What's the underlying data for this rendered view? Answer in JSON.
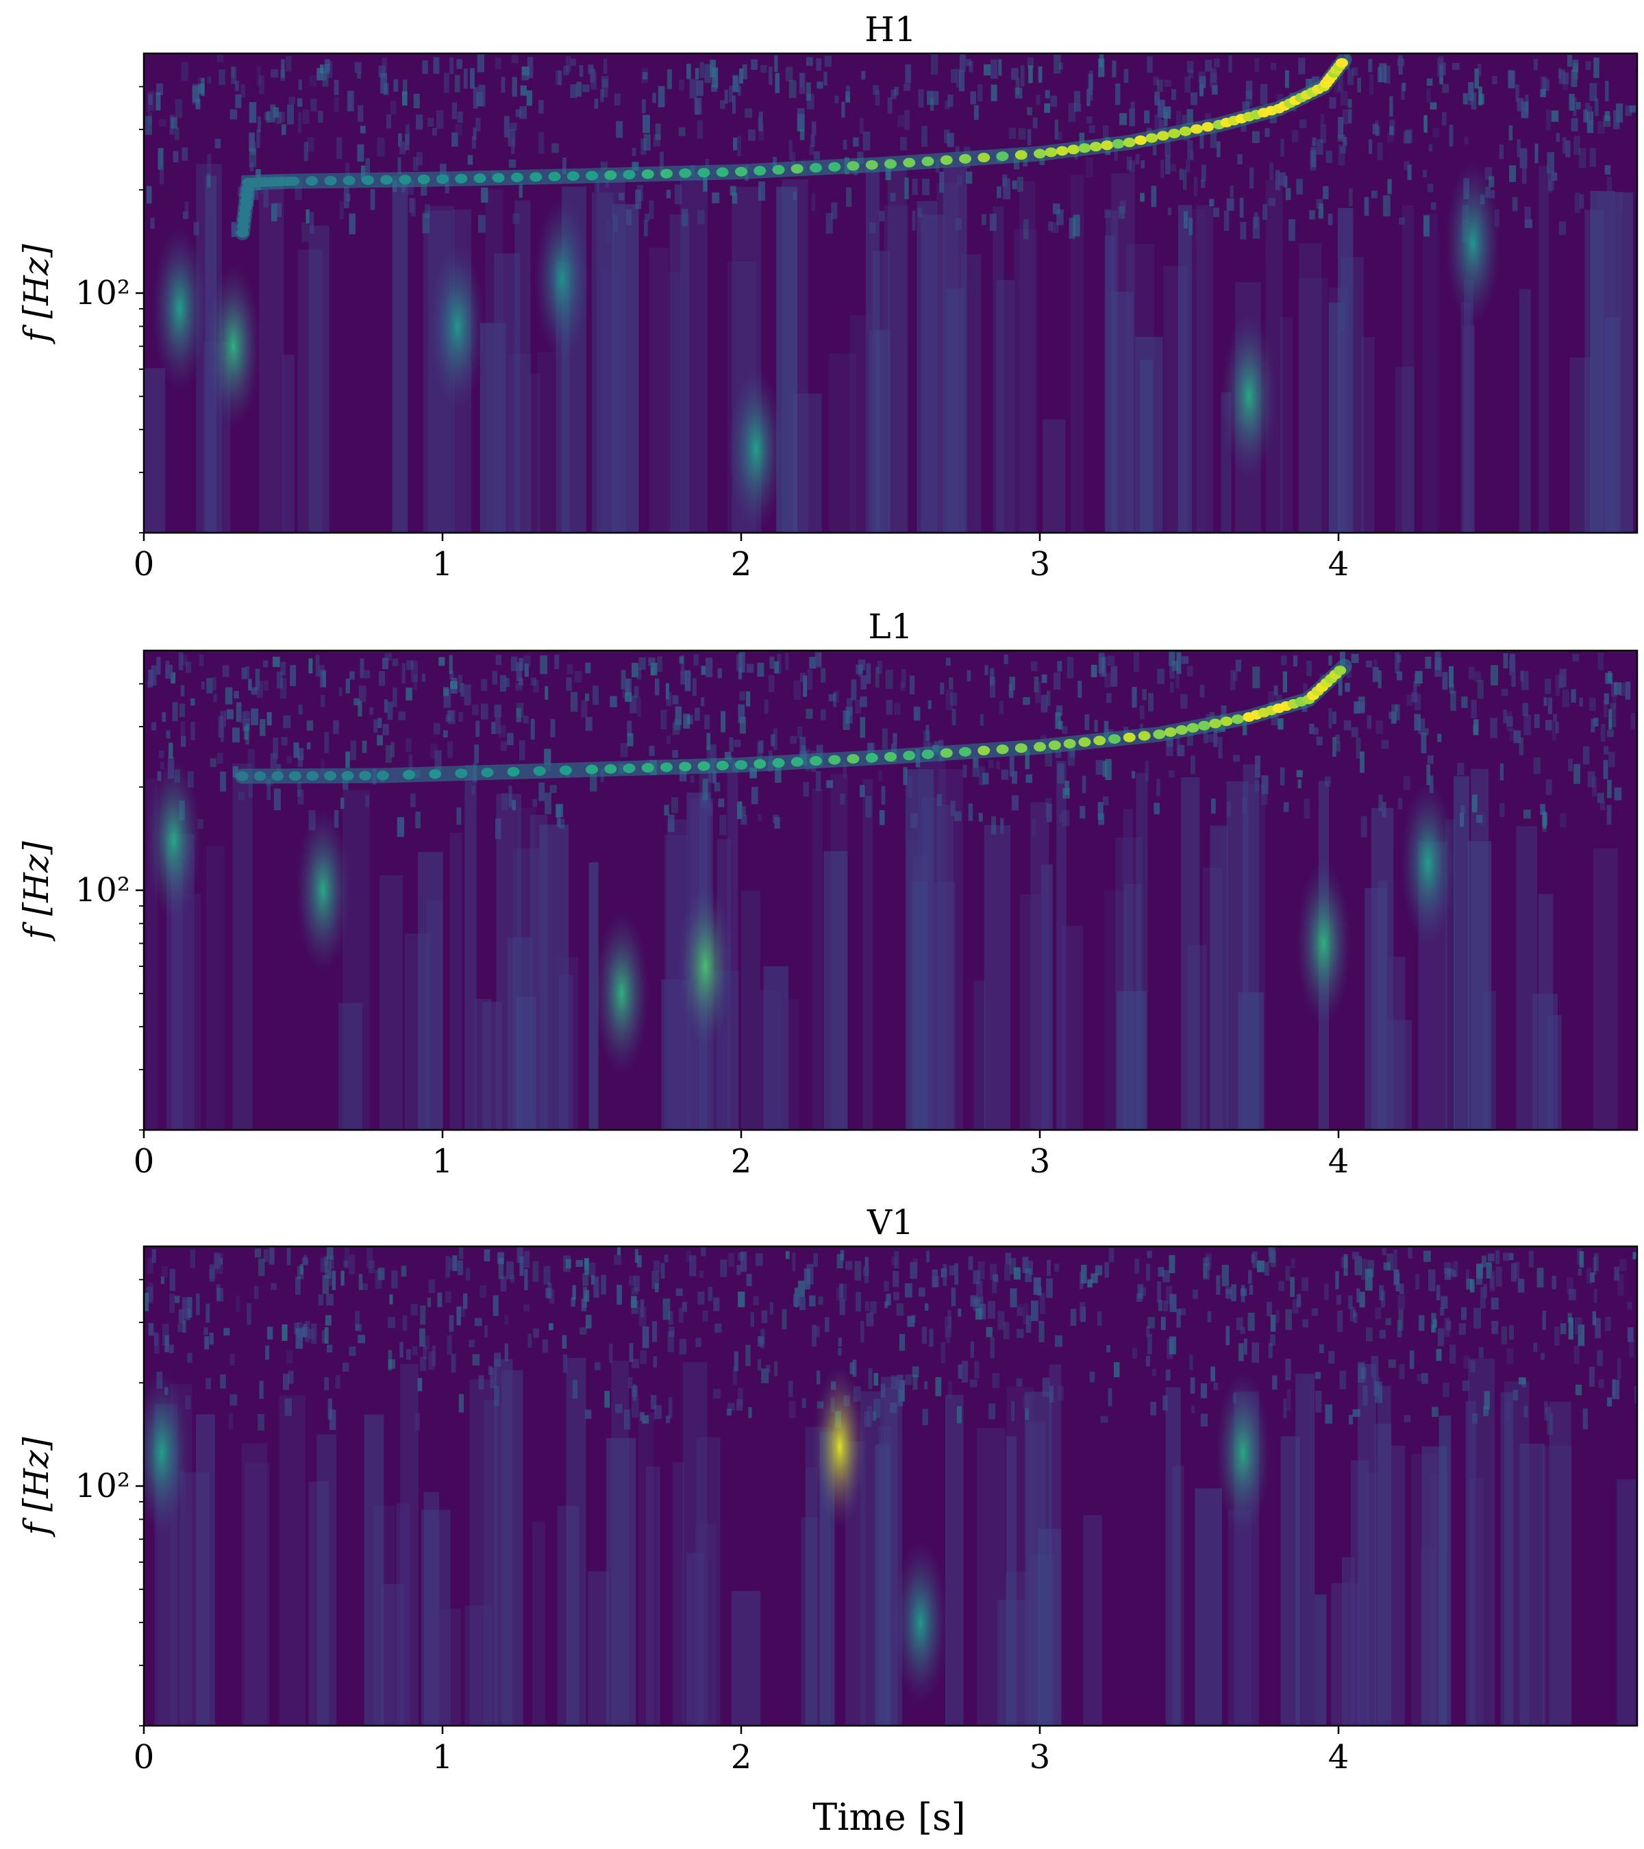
{
  "figure": {
    "xlabel": "Time [s]",
    "ylabel": "f [Hz]"
  },
  "chart_data": [
    {
      "type": "heatmap",
      "title": "H1",
      "xlabel": "",
      "ylabel": "f [Hz]",
      "xlim": [
        0,
        5
      ],
      "ylim": [
        20,
        500
      ],
      "yscale": "log",
      "xticks": [
        0,
        1,
        2,
        3,
        4
      ],
      "xtick_labels": [
        "0",
        "1",
        "2",
        "3",
        "4"
      ],
      "yticks": [
        100
      ],
      "ytick_labels": [
        "10²"
      ],
      "colormap": "viridis",
      "grid": false,
      "features": {
        "chirp_track": {
          "description_free": true,
          "points": [
            [
              0.33,
              150
            ],
            [
              0.35,
              210
            ],
            [
              0.5,
              212
            ],
            [
              1.0,
              215
            ],
            [
              1.5,
              220
            ],
            [
              2.0,
              226
            ],
            [
              2.5,
              238
            ],
            [
              3.0,
              255
            ],
            [
              3.3,
              275
            ],
            [
              3.6,
              310
            ],
            [
              3.8,
              345
            ],
            [
              3.95,
              400
            ],
            [
              4.02,
              480
            ]
          ],
          "peak_intensity": 1.0
        },
        "bursts": [
          {
            "t": 0.12,
            "f": 90,
            "intensity": 0.45
          },
          {
            "t": 0.3,
            "f": 70,
            "intensity": 0.55
          },
          {
            "t": 1.05,
            "f": 80,
            "intensity": 0.4
          },
          {
            "t": 1.4,
            "f": 110,
            "intensity": 0.35
          },
          {
            "t": 2.05,
            "f": 35,
            "intensity": 0.45
          },
          {
            "t": 3.7,
            "f": 50,
            "intensity": 0.5
          },
          {
            "t": 4.45,
            "f": 140,
            "intensity": 0.4
          }
        ]
      }
    },
    {
      "type": "heatmap",
      "title": "L1",
      "xlabel": "",
      "ylabel": "f [Hz]",
      "xlim": [
        0,
        5
      ],
      "ylim": [
        20,
        500
      ],
      "yscale": "log",
      "xticks": [
        0,
        1,
        2,
        3,
        4
      ],
      "xtick_labels": [
        "0",
        "1",
        "2",
        "3",
        "4"
      ],
      "yticks": [
        100
      ],
      "ytick_labels": [
        "10²"
      ],
      "colormap": "viridis",
      "grid": false,
      "features": {
        "chirp_track": {
          "points": [
            [
              0.33,
              215
            ],
            [
              0.8,
              216
            ],
            [
              1.5,
              225
            ],
            [
              2.0,
              232
            ],
            [
              2.5,
              245
            ],
            [
              3.0,
              262
            ],
            [
              3.4,
              285
            ],
            [
              3.7,
              320
            ],
            [
              3.9,
              360
            ],
            [
              4.02,
              450
            ]
          ],
          "peak_intensity": 0.95
        },
        "bursts": [
          {
            "t": 0.1,
            "f": 140,
            "intensity": 0.5
          },
          {
            "t": 0.6,
            "f": 100,
            "intensity": 0.5
          },
          {
            "t": 1.6,
            "f": 50,
            "intensity": 0.55
          },
          {
            "t": 1.88,
            "f": 60,
            "intensity": 0.65
          },
          {
            "t": 3.95,
            "f": 70,
            "intensity": 0.55
          },
          {
            "t": 4.3,
            "f": 120,
            "intensity": 0.45
          }
        ]
      }
    },
    {
      "type": "heatmap",
      "title": "V1",
      "xlabel": "Time [s]",
      "ylabel": "f [Hz]",
      "xlim": [
        0,
        5
      ],
      "ylim": [
        20,
        500
      ],
      "yscale": "log",
      "xticks": [
        0,
        1,
        2,
        3,
        4
      ],
      "xtick_labels": [
        "0",
        "1",
        "2",
        "3",
        "4"
      ],
      "yticks": [
        100
      ],
      "ytick_labels": [
        "10²"
      ],
      "colormap": "viridis",
      "grid": false,
      "features": {
        "chirp_track": null,
        "bursts": [
          {
            "t": 0.06,
            "f": 125,
            "intensity": 0.45
          },
          {
            "t": 2.33,
            "f": 130,
            "intensity": 1.0
          },
          {
            "t": 2.6,
            "f": 40,
            "intensity": 0.4
          },
          {
            "t": 3.68,
            "f": 125,
            "intensity": 0.5
          }
        ]
      }
    }
  ]
}
